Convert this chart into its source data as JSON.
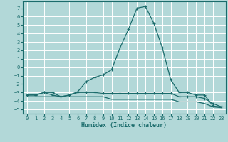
{
  "xlabel": "Humidex (Indice chaleur)",
  "background_color": "#b2d8d8",
  "grid_color": "#ffffff",
  "line_color": "#1a6b6b",
  "x": [
    0,
    1,
    2,
    3,
    4,
    5,
    6,
    7,
    8,
    9,
    10,
    11,
    12,
    13,
    14,
    15,
    16,
    17,
    18,
    19,
    20,
    21,
    22,
    23
  ],
  "line1": [
    -3.3,
    -3.3,
    -3.0,
    -3.0,
    -3.5,
    -3.3,
    -2.9,
    -1.7,
    -1.2,
    -0.9,
    -0.3,
    2.3,
    4.5,
    7.0,
    7.2,
    5.2,
    2.3,
    -1.5,
    -3.0,
    -3.0,
    -3.3,
    -3.3,
    -4.6,
    -4.7
  ],
  "line2": [
    -3.3,
    -3.3,
    -3.0,
    -3.3,
    -3.5,
    -3.3,
    -3.0,
    -3.0,
    -3.0,
    -3.1,
    -3.1,
    -3.1,
    -3.1,
    -3.1,
    -3.1,
    -3.1,
    -3.1,
    -3.1,
    -3.5,
    -3.5,
    -3.5,
    -3.7,
    -4.3,
    -4.7
  ],
  "line3": [
    -3.5,
    -3.5,
    -3.5,
    -3.5,
    -3.5,
    -3.5,
    -3.5,
    -3.5,
    -3.5,
    -3.5,
    -3.8,
    -3.8,
    -3.8,
    -3.8,
    -3.8,
    -3.8,
    -3.8,
    -3.8,
    -4.1,
    -4.1,
    -4.1,
    -4.3,
    -4.7,
    -4.8
  ],
  "ylim": [
    -5.5,
    7.8
  ],
  "xlim": [
    -0.5,
    23.5
  ],
  "yticks": [
    -5,
    -4,
    -3,
    -2,
    -1,
    0,
    1,
    2,
    3,
    4,
    5,
    6,
    7
  ],
  "xticks": [
    0,
    1,
    2,
    3,
    4,
    5,
    6,
    7,
    8,
    9,
    10,
    11,
    12,
    13,
    14,
    15,
    16,
    17,
    18,
    19,
    20,
    21,
    22,
    23
  ]
}
